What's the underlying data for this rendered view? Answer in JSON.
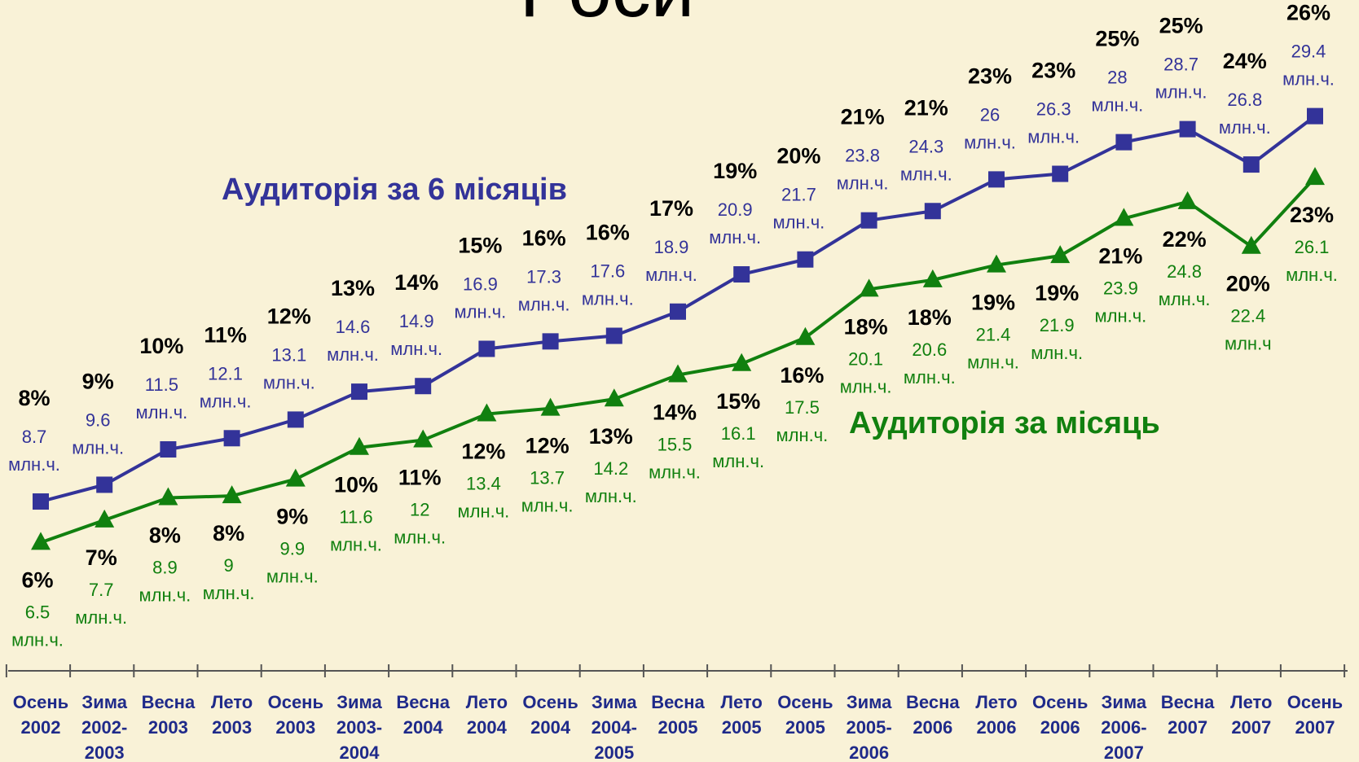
{
  "chart_data": {
    "type": "line",
    "title": "Роси",
    "categories": [
      "Осень 2002",
      "Зима 2002-2003",
      "Весна 2003",
      "Лето 2003",
      "Осень 2003",
      "Зима 2003-2004",
      "Весна 2004",
      "Лето 2004",
      "Осень 2004",
      "Зима 2004-2005",
      "Весна 2005",
      "Лето 2005",
      "Осень 2005",
      "Зима 2005-2006",
      "Весна 2006",
      "Лето 2006",
      "Осень 2006",
      "Зима 2006-2007",
      "Весна 2007",
      "Лето 2007",
      "Осень 2007"
    ],
    "ylim": [
      0,
      36
    ],
    "series": [
      {
        "name": "Аудиторія за 6 місяців",
        "color": "#333399",
        "marker": "square",
        "values": [
          8.7,
          9.6,
          11.5,
          12.1,
          13.1,
          14.6,
          14.9,
          16.9,
          17.3,
          17.6,
          18.9,
          20.9,
          21.7,
          23.8,
          24.3,
          26,
          26.3,
          28,
          28.7,
          26.8,
          29.4
        ],
        "value_labels": [
          "8.7 млн.ч.",
          "9.6 млн.ч.",
          "11.5 млн.ч.",
          "12.1 млн.ч.",
          "13.1 млн.ч.",
          "14.6 млн.ч.",
          "14.9 млн.ч.",
          "16.9 млн.ч.",
          "17.3 млн.ч.",
          "17.6 млн.ч.",
          "18.9 млн.ч.",
          "20.9 млн.ч.",
          "21.7 млн.ч.",
          "23.8 млн.ч.",
          "24.3 млн.ч.",
          "26 млн.ч.",
          "26.3 млн.ч.",
          "28 млн.ч.",
          "28.7 млн.ч.",
          "26.8 млн.ч.",
          "29.4 млн.ч."
        ],
        "share_labels": [
          "8%",
          "9%",
          "10%",
          "11%",
          "12%",
          "13%",
          "14%",
          "15%",
          "16%",
          "16%",
          "17%",
          "19%",
          "20%",
          "21%",
          "21%",
          "23%",
          "23%",
          "25%",
          "25%",
          "24%",
          "26%"
        ]
      },
      {
        "name": "Аудиторія за місяць",
        "color": "#11800f",
        "marker": "triangle",
        "values": [
          6.5,
          7.7,
          8.9,
          9,
          9.9,
          11.6,
          12,
          13.4,
          13.7,
          14.2,
          15.5,
          16.1,
          17.5,
          20.1,
          20.6,
          21.4,
          21.9,
          23.9,
          24.8,
          22.4,
          26.1
        ],
        "value_labels": [
          "6.5 млн.ч.",
          "7.7 млн.ч.",
          "8.9 млн.ч.",
          "9 млн.ч.",
          "9.9 млн.ч.",
          "11.6 млн.ч.",
          "12 млн.ч.",
          "13.4 млн.ч.",
          "13.7 млн.ч.",
          "14.2 млн.ч.",
          "15.5 млн.ч.",
          "16.1 млн.ч.",
          "17.5 млн.ч.",
          "20.1 млн.ч.",
          "20.6 млн.ч.",
          "21.4 млн.ч.",
          "21.9 млн.ч.",
          "23.9 млн.ч.",
          "24.8 млн.ч.",
          "22.4 млн.ч",
          "26.1 млн.ч."
        ],
        "share_labels": [
          "6%",
          "7%",
          "8%",
          "8%",
          "9%",
          "10%",
          "11%",
          "12%",
          "12%",
          "13%",
          "14%",
          "15%",
          "16%",
          "18%",
          "18%",
          "19%",
          "19%",
          "21%",
          "22%",
          "20%",
          "23%"
        ]
      }
    ]
  }
}
